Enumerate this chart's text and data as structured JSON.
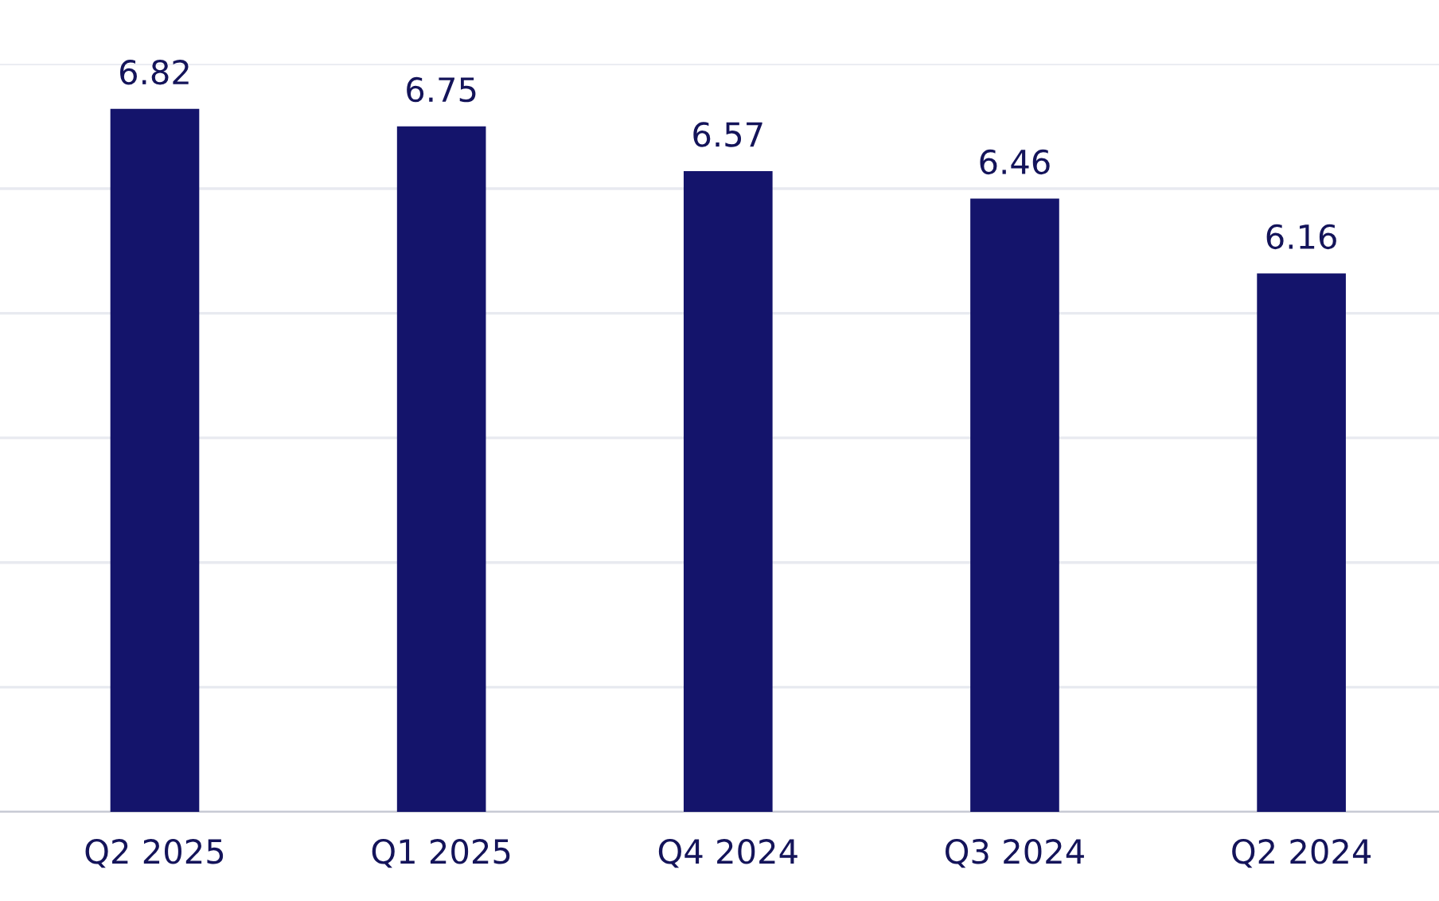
{
  "chart_data": {
    "type": "bar",
    "categories": [
      "Q2 2025",
      "Q1 2025",
      "Q4 2024",
      "Q3 2024",
      "Q2 2024"
    ],
    "values": [
      6.82,
      6.75,
      6.57,
      6.46,
      6.16
    ],
    "color": "#14146b",
    "ylim": [
      4,
      7
    ],
    "yticks": [
      4,
      4.5,
      5,
      5.5,
      6,
      6.5,
      7
    ],
    "grid": "y",
    "tick_labels": "x",
    "data_labels": true
  }
}
